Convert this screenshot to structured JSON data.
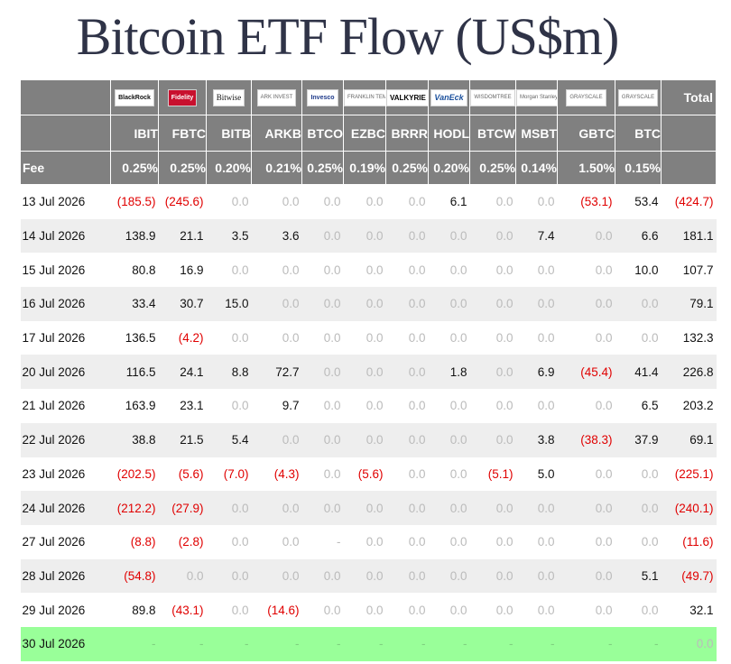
{
  "title": "Bitcoin ETF Flow (US$m)",
  "columns": [
    {
      "logo": "BlackRock",
      "logo_icon": "blackrock-logo",
      "ticker": "IBIT",
      "fee": "0.25%"
    },
    {
      "logo": "Fidelity",
      "logo_icon": "fidelity-logo",
      "ticker": "FBTC",
      "fee": "0.25%"
    },
    {
      "logo": "Bitwise",
      "logo_icon": "bitwise-logo",
      "ticker": "BITB",
      "fee": "0.20%"
    },
    {
      "logo": "ARK INVEST",
      "logo_icon": "ark-invest-logo",
      "ticker": "ARKB",
      "fee": "0.21%"
    },
    {
      "logo": "Invesco",
      "logo_icon": "invesco-logo",
      "ticker": "BTCO",
      "fee": "0.25%"
    },
    {
      "logo": "FRANKLIN TEMPLETON",
      "logo_icon": "franklin-templeton-logo",
      "ticker": "EZBC",
      "fee": "0.19%"
    },
    {
      "logo": "VALKYRIE",
      "logo_icon": "valkyrie-logo",
      "ticker": "BRRR",
      "fee": "0.25%"
    },
    {
      "logo": "VanEck",
      "logo_icon": "vaneck-logo",
      "ticker": "HODL",
      "fee": "0.20%"
    },
    {
      "logo": "WISDOMTREE",
      "logo_icon": "wisdomtree-logo",
      "ticker": "BTCW",
      "fee": "0.25%"
    },
    {
      "logo": "Morgan Stanley",
      "logo_icon": "morgan-stanley-logo",
      "ticker": "MSBT",
      "fee": "0.14%"
    },
    {
      "logo": "GRAYSCALE",
      "logo_icon": "grayscale-logo",
      "ticker": "GBTC",
      "fee": "1.50%"
    },
    {
      "logo": "GRAYSCALE",
      "logo_icon": "grayscale-logo",
      "ticker": "BTC",
      "fee": "0.15%"
    }
  ],
  "total_label": "Total",
  "fee_label": "Fee",
  "rows": [
    {
      "date": "13 Jul 2026",
      "values": [
        "(185.5)",
        "(245.6)",
        "0.0",
        "0.0",
        "0.0",
        "0.0",
        "0.0",
        "6.1",
        "0.0",
        "0.0",
        "(53.1)",
        "53.4"
      ],
      "total": "(424.7)"
    },
    {
      "date": "14 Jul 2026",
      "values": [
        "138.9",
        "21.1",
        "3.5",
        "3.6",
        "0.0",
        "0.0",
        "0.0",
        "0.0",
        "0.0",
        "7.4",
        "0.0",
        "6.6"
      ],
      "total": "181.1"
    },
    {
      "date": "15 Jul 2026",
      "values": [
        "80.8",
        "16.9",
        "0.0",
        "0.0",
        "0.0",
        "0.0",
        "0.0",
        "0.0",
        "0.0",
        "0.0",
        "0.0",
        "10.0"
      ],
      "total": "107.7"
    },
    {
      "date": "16 Jul 2026",
      "values": [
        "33.4",
        "30.7",
        "15.0",
        "0.0",
        "0.0",
        "0.0",
        "0.0",
        "0.0",
        "0.0",
        "0.0",
        "0.0",
        "0.0"
      ],
      "total": "79.1"
    },
    {
      "date": "17 Jul 2026",
      "values": [
        "136.5",
        "(4.2)",
        "0.0",
        "0.0",
        "0.0",
        "0.0",
        "0.0",
        "0.0",
        "0.0",
        "0.0",
        "0.0",
        "0.0"
      ],
      "total": "132.3"
    },
    {
      "date": "20 Jul 2026",
      "values": [
        "116.5",
        "24.1",
        "8.8",
        "72.7",
        "0.0",
        "0.0",
        "0.0",
        "1.8",
        "0.0",
        "6.9",
        "(45.4)",
        "41.4"
      ],
      "total": "226.8"
    },
    {
      "date": "21 Jul 2026",
      "values": [
        "163.9",
        "23.1",
        "0.0",
        "9.7",
        "0.0",
        "0.0",
        "0.0",
        "0.0",
        "0.0",
        "0.0",
        "0.0",
        "6.5"
      ],
      "total": "203.2"
    },
    {
      "date": "22 Jul 2026",
      "values": [
        "38.8",
        "21.5",
        "5.4",
        "0.0",
        "0.0",
        "0.0",
        "0.0",
        "0.0",
        "0.0",
        "3.8",
        "(38.3)",
        "37.9"
      ],
      "total": "69.1"
    },
    {
      "date": "23 Jul 2026",
      "values": [
        "(202.5)",
        "(5.6)",
        "(7.0)",
        "(4.3)",
        "0.0",
        "(5.6)",
        "0.0",
        "0.0",
        "(5.1)",
        "5.0",
        "0.0",
        "0.0"
      ],
      "total": "(225.1)"
    },
    {
      "date": "24 Jul 2026",
      "values": [
        "(212.2)",
        "(27.9)",
        "0.0",
        "0.0",
        "0.0",
        "0.0",
        "0.0",
        "0.0",
        "0.0",
        "0.0",
        "0.0",
        "0.0"
      ],
      "total": "(240.1)"
    },
    {
      "date": "27 Jul 2026",
      "values": [
        "(8.8)",
        "(2.8)",
        "0.0",
        "0.0",
        "-",
        "0.0",
        "0.0",
        "0.0",
        "0.0",
        "0.0",
        "0.0",
        "0.0"
      ],
      "total": "(11.6)"
    },
    {
      "date": "28 Jul 2026",
      "values": [
        "(54.8)",
        "0.0",
        "0.0",
        "0.0",
        "0.0",
        "0.0",
        "0.0",
        "0.0",
        "0.0",
        "0.0",
        "0.0",
        "5.1"
      ],
      "total": "(49.7)"
    },
    {
      "date": "29 Jul 2026",
      "values": [
        "89.8",
        "(43.1)",
        "0.0",
        "(14.6)",
        "0.0",
        "0.0",
        "0.0",
        "0.0",
        "0.0",
        "0.0",
        "0.0",
        "0.0"
      ],
      "total": "32.1"
    },
    {
      "date": "30 Jul 2026",
      "values": [
        "-",
        "-",
        "-",
        "-",
        "-",
        "-",
        "-",
        "-",
        "-",
        "-",
        "-",
        "-"
      ],
      "total": "0.0",
      "highlight": true
    }
  ],
  "colors": {
    "header_bg": "#808080",
    "negative": "#e00000",
    "zero": "#bbbbbb",
    "highlight_row": "#99ff99",
    "title": "#2f3347"
  }
}
